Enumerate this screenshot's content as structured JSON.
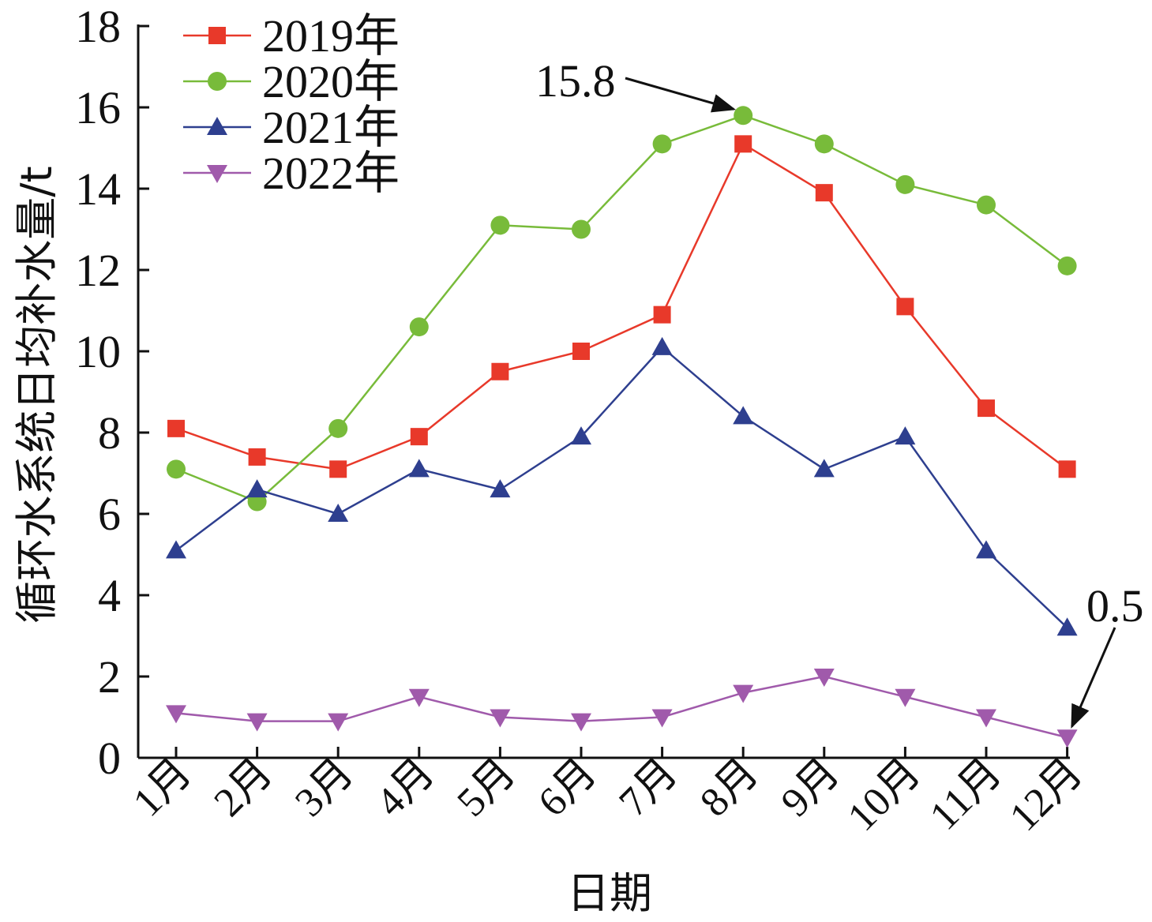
{
  "chart_data": {
    "type": "line",
    "title": "",
    "xlabel": "日期",
    "ylabel": "循环水系统日均补水量/t",
    "ylim": [
      0,
      18
    ],
    "yticks": [
      "0",
      "2",
      "4",
      "6",
      "8",
      "10",
      "12",
      "14",
      "16",
      "18"
    ],
    "categories": [
      "1月",
      "2月",
      "3月",
      "4月",
      "5月",
      "6月",
      "7月",
      "8月",
      "9月",
      "10月",
      "11月",
      "12月"
    ],
    "grid": false,
    "legend_position": "top-left",
    "series": [
      {
        "name": "2019年",
        "marker": "square",
        "color": "#e8392a",
        "values": [
          8.1,
          7.4,
          7.1,
          7.9,
          9.5,
          10.0,
          10.9,
          15.1,
          13.9,
          11.1,
          8.6,
          7.1
        ]
      },
      {
        "name": "2020年",
        "marker": "circle",
        "color": "#78bb3a",
        "values": [
          7.1,
          6.3,
          8.1,
          10.6,
          13.1,
          13.0,
          15.1,
          15.8,
          15.1,
          14.1,
          13.6,
          12.1
        ]
      },
      {
        "name": "2021年",
        "marker": "triangle-up",
        "color": "#2e3f8f",
        "values": [
          5.1,
          6.6,
          6.0,
          7.1,
          6.6,
          7.9,
          10.1,
          8.4,
          7.1,
          7.9,
          5.1,
          3.2
        ]
      },
      {
        "name": "2022年",
        "marker": "triangle-down",
        "color": "#a05aab",
        "values": [
          1.1,
          0.9,
          0.9,
          1.5,
          1.0,
          0.9,
          1.0,
          1.6,
          2.0,
          1.5,
          1.0,
          0.5
        ]
      }
    ],
    "annotations": [
      {
        "text": "15.8",
        "series": "2020年",
        "category": "8月"
      },
      {
        "text": "0.5",
        "series": "2022年",
        "category": "12月"
      }
    ]
  }
}
